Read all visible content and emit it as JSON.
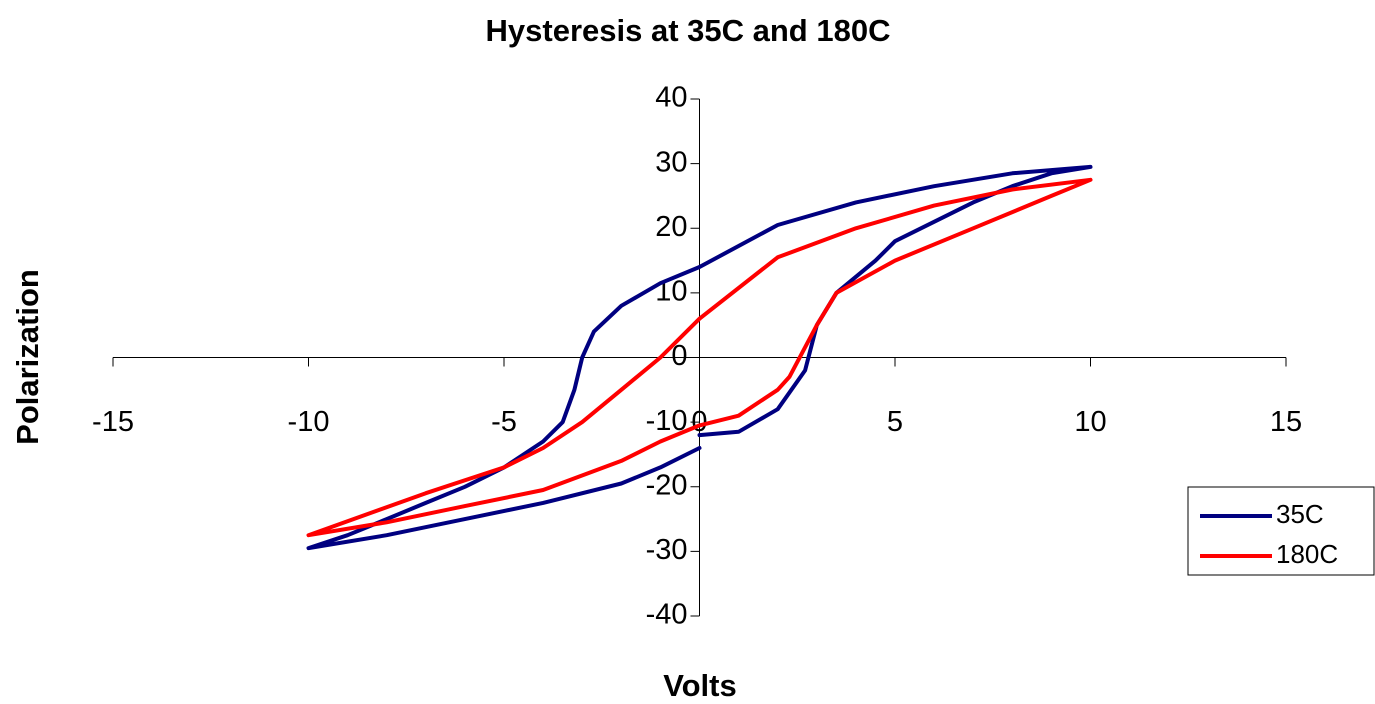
{
  "chart_data": {
    "type": "line",
    "title": "Hysteresis at 35C and 180C",
    "x_label": "Volts",
    "y_label": "Polarization",
    "xlim": [
      -15,
      15
    ],
    "xticks": [
      -15,
      -10,
      -5,
      0,
      5,
      10,
      15
    ],
    "ylim": [
      -40,
      40
    ],
    "yticks": [
      -40,
      -30,
      -20,
      -10,
      0,
      10,
      20,
      30,
      40
    ],
    "legend": "right",
    "series": [
      {
        "name": "35C",
        "color": "#000080",
        "x": [
          0,
          1,
          2,
          2.7,
          3,
          3.5,
          4.5,
          5,
          6,
          7,
          8,
          9,
          10,
          8,
          6,
          4,
          2,
          0,
          -1,
          -2,
          -2.7,
          -3,
          -3.2,
          -3.5,
          -4,
          -5,
          -6,
          -7,
          -8,
          -9,
          -10,
          -8,
          -6,
          -4,
          -2,
          -1,
          0
        ],
        "values": [
          -12,
          -11.5,
          -8,
          -2,
          5,
          10,
          15,
          18,
          21,
          24,
          26.5,
          28.5,
          29.5,
          28.5,
          26.5,
          24,
          20.5,
          14,
          11.5,
          8,
          4,
          0,
          -5,
          -10,
          -13,
          -17,
          -20,
          -22.5,
          -25,
          -27.5,
          -29.5,
          -27.5,
          -25,
          -22.5,
          -19.5,
          -17,
          -14
        ]
      },
      {
        "name": "180C",
        "color": "#ff0000",
        "x": [
          0,
          1,
          2,
          2.3,
          3,
          3.5,
          5,
          7,
          9,
          10,
          8,
          6,
          4,
          2,
          0,
          -1,
          -2,
          -3,
          -4,
          -5,
          -7,
          -10,
          -8,
          -6,
          -4,
          -2,
          -1,
          0
        ],
        "values": [
          -10.5,
          -9,
          -5,
          -3,
          5,
          10,
          15,
          20,
          25,
          27.5,
          26,
          23.5,
          20,
          15.5,
          6,
          0,
          -5,
          -10,
          -14,
          -17,
          -21,
          -27.5,
          -25.5,
          -23,
          -20.5,
          -16,
          -13,
          -10.5
        ]
      }
    ]
  }
}
